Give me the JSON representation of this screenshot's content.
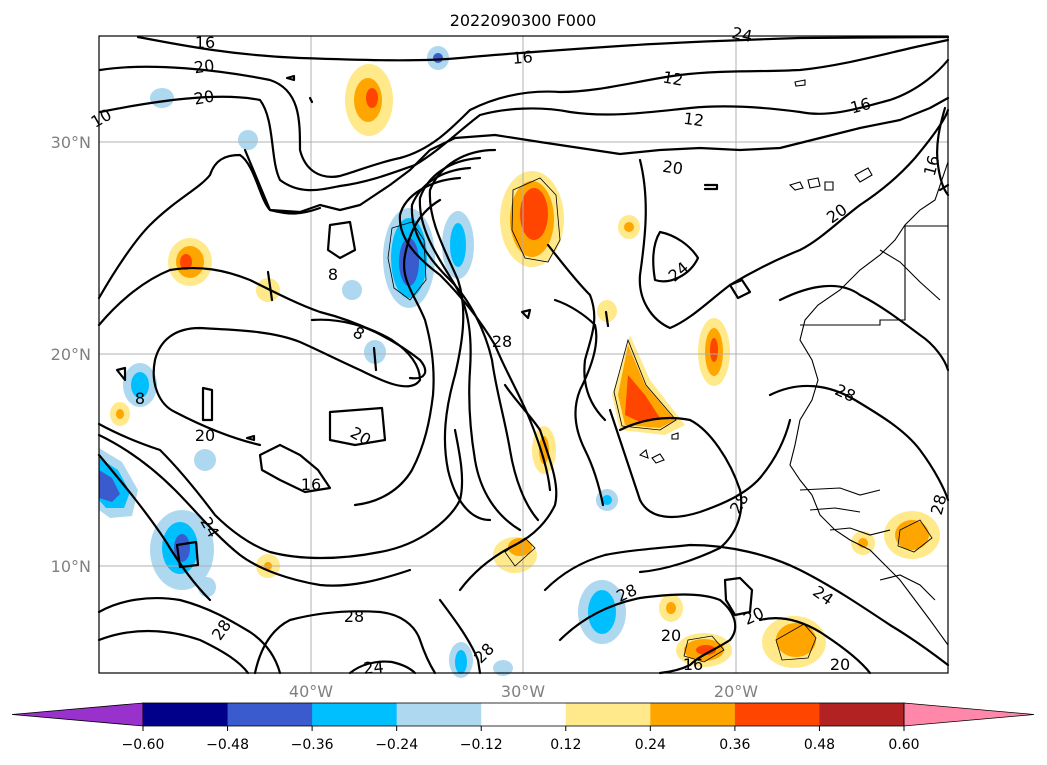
{
  "title": "2022090300 F000",
  "map": {
    "lat_labels": [
      "30°N",
      "20°N",
      "10°N"
    ],
    "lon_labels": [
      "40°W",
      "30°W",
      "20°W"
    ],
    "contour_labels": [
      "16",
      "20",
      "20",
      "16",
      "12",
      "12",
      "16",
      "16",
      "20",
      "20",
      "8",
      "8",
      "28",
      "24",
      "28",
      "20",
      "16",
      "8",
      "20",
      "24",
      "24",
      "28",
      "28",
      "28",
      "28",
      "24",
      "20",
      "20",
      "16",
      "28",
      "20",
      "24",
      "10",
      "28"
    ]
  },
  "colorbar": {
    "colors": [
      "#9932cc",
      "#00008b",
      "#3a5bcd",
      "#00bfff",
      "#add8f0",
      "#ffffff",
      "#ffe98a",
      "#ffa500",
      "#ff4500",
      "#b22222",
      "#ff88aa"
    ],
    "tick_labels": [
      "−0.60",
      "−0.48",
      "−0.36",
      "−0.24",
      "−0.12",
      "0.12",
      "0.24",
      "0.36",
      "0.48",
      "0.60"
    ]
  }
}
